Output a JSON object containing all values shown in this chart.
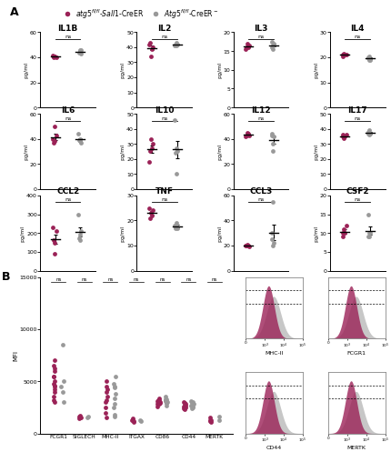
{
  "red_color": "#9B2257",
  "gray_color": "#999999",
  "dot_size": 12,
  "panel_A_plots": [
    {
      "title": "IL1B",
      "ylim": [
        0,
        60
      ],
      "yticks": [
        0,
        20,
        40,
        60
      ],
      "red_data": [
        41,
        40,
        41.5,
        40.5,
        41,
        40.8,
        40.2
      ],
      "gray_data": [
        44,
        46,
        43,
        45,
        45.5,
        43.5
      ]
    },
    {
      "title": "IL2",
      "ylim": [
        0,
        50
      ],
      "yticks": [
        0,
        10,
        20,
        30,
        40,
        50
      ],
      "red_data": [
        39,
        40,
        42,
        34,
        43
      ],
      "gray_data": [
        41,
        42,
        41.5,
        43,
        42
      ]
    },
    {
      "title": "IL3",
      "ylim": [
        0,
        20
      ],
      "yticks": [
        0,
        5,
        10,
        15,
        20
      ],
      "red_data": [
        16,
        16.5,
        15.5,
        17,
        16
      ],
      "gray_data": [
        16,
        17.5,
        16.5,
        15.5,
        17
      ]
    },
    {
      "title": "IL4",
      "ylim": [
        0,
        30
      ],
      "yticks": [
        0,
        10,
        20,
        30
      ],
      "red_data": [
        21,
        21,
        20.5,
        21.5,
        21
      ],
      "gray_data": [
        19.5,
        20,
        19,
        20.5,
        19
      ]
    },
    {
      "title": "IL6",
      "ylim": [
        0,
        60
      ],
      "yticks": [
        0,
        20,
        40,
        60
      ],
      "red_data": [
        50,
        43,
        40,
        38,
        37
      ],
      "gray_data": [
        44,
        39,
        40,
        38,
        37
      ]
    },
    {
      "title": "IL10",
      "ylim": [
        0,
        50
      ],
      "yticks": [
        0,
        10,
        20,
        30,
        40,
        50
      ],
      "red_data": [
        27,
        30,
        18,
        33,
        25
      ],
      "gray_data": [
        46,
        24,
        10,
        27,
        25
      ]
    },
    {
      "title": "IL12",
      "ylim": [
        0,
        60
      ],
      "yticks": [
        0,
        20,
        40,
        60
      ],
      "red_data": [
        44,
        43,
        42,
        45,
        43
      ],
      "gray_data": [
        43,
        44,
        36,
        30,
        42
      ]
    },
    {
      "title": "IL17",
      "ylim": [
        0,
        50
      ],
      "yticks": [
        0,
        10,
        20,
        30,
        40,
        50
      ],
      "red_data": [
        35,
        36,
        35,
        34,
        36
      ],
      "gray_data": [
        37,
        38,
        36,
        39,
        37
      ]
    },
    {
      "title": "CCL2",
      "ylim": [
        0,
        400
      ],
      "yticks": [
        0,
        100,
        200,
        300,
        400
      ],
      "red_data": [
        150,
        210,
        230,
        90,
        160
      ],
      "gray_data": [
        300,
        170,
        190,
        160,
        210
      ]
    },
    {
      "title": "TNF",
      "ylim": [
        0,
        30
      ],
      "yticks": [
        0,
        10,
        20,
        30
      ],
      "red_data": [
        22,
        24,
        25,
        23,
        21
      ],
      "gray_data": [
        18,
        17,
        19,
        18,
        17
      ]
    },
    {
      "title": "CCL3",
      "ylim": [
        0,
        60
      ],
      "yticks": [
        0,
        20,
        40,
        60
      ],
      "red_data": [
        20,
        19,
        20,
        21,
        20
      ],
      "gray_data": [
        30,
        25,
        55,
        20,
        22
      ]
    },
    {
      "title": "CSF2",
      "ylim": [
        0,
        20
      ],
      "yticks": [
        0,
        5,
        10,
        15,
        20
      ],
      "red_data": [
        10,
        12,
        9,
        11,
        10
      ],
      "gray_data": [
        15,
        9,
        10,
        9,
        10
      ]
    }
  ],
  "panel_B": {
    "markers": [
      "FCGR1",
      "SIGLECH",
      "MHC-II",
      "ITGAX",
      "CD86",
      "CD44",
      "MERTK"
    ],
    "red_data": [
      [
        7000,
        5500,
        6000,
        4000,
        4500,
        3000,
        5500,
        6200,
        4800,
        3200,
        5000,
        4200,
        3500,
        4600,
        6500
      ],
      [
        1500,
        1600,
        1700,
        1400,
        1550
      ],
      [
        2000,
        3000,
        4000,
        5000,
        2500,
        3500,
        4500,
        1500,
        3200,
        4200
      ],
      [
        1200,
        1300,
        1100,
        1400,
        1250
      ],
      [
        3000,
        2800,
        3200,
        3100,
        2900,
        3000,
        2800,
        3200,
        3400,
        2600
      ],
      [
        2500,
        2800,
        2600,
        2400,
        2700,
        3000,
        2300,
        2600,
        2900,
        2700
      ],
      [
        1200,
        1500,
        1100,
        1300,
        1250
      ]
    ],
    "gray_data": [
      [
        8500,
        3000,
        4000,
        5000,
        4500
      ],
      [
        1600,
        1500
      ],
      [
        1800,
        2500,
        4500,
        5500,
        2800,
        3800,
        4800,
        1600,
        3400,
        4400
      ],
      [
        1300,
        1150
      ],
      [
        3100,
        2900,
        3300,
        3200,
        3000,
        3100,
        2900,
        3300,
        3500,
        2700
      ],
      [
        2600,
        2900,
        2700,
        2500,
        2800,
        3100,
        2400,
        2700,
        3000,
        2800
      ],
      [
        1300,
        1600
      ]
    ],
    "ylim": [
      0,
      15000
    ],
    "yticks": [
      0,
      5000,
      10000,
      15000
    ]
  },
  "hist_labels": [
    [
      "MHC-II",
      "FCGR1"
    ],
    [
      "CD44",
      "MERTK"
    ]
  ]
}
